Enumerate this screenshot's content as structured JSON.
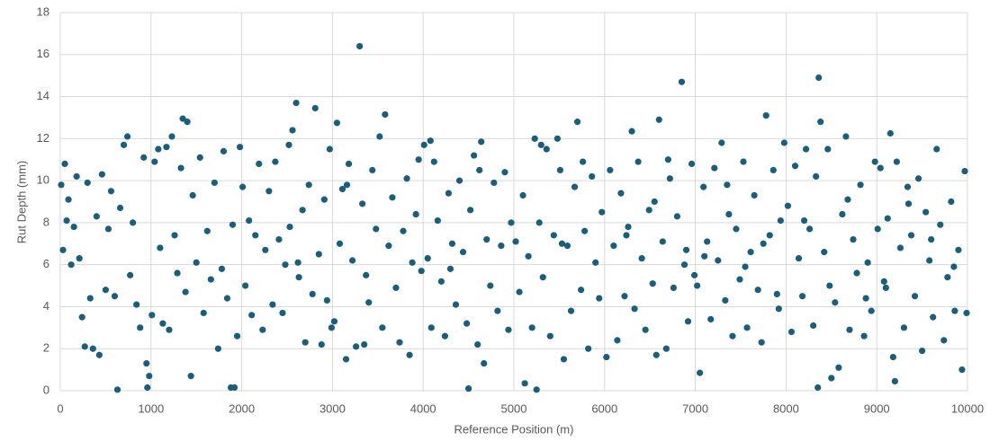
{
  "chart_data": {
    "type": "scatter",
    "x_label": "Reference Position (m)",
    "y_label": "Rut Depth (mm)",
    "color": "#1b5e7b",
    "grid": true,
    "xlim": [
      0,
      10000
    ],
    "ylim": [
      0,
      18
    ],
    "xticks": [
      0,
      1000,
      2000,
      3000,
      4000,
      5000,
      6000,
      7000,
      8000,
      9000,
      10000
    ],
    "yticks": [
      0,
      2,
      4,
      6,
      8,
      10,
      12,
      14,
      16,
      18
    ],
    "x": [
      10,
      30,
      50,
      70,
      90,
      120,
      150,
      180,
      210,
      240,
      270,
      300,
      330,
      360,
      400,
      430,
      460,
      500,
      530,
      560,
      600,
      630,
      660,
      700,
      740,
      770,
      800,
      840,
      880,
      920,
      950,
      960,
      980,
      1010,
      1040,
      1080,
      1100,
      1130,
      1170,
      1200,
      1230,
      1260,
      1290,
      1330,
      1350,
      1380,
      1400,
      1440,
      1460,
      1500,
      1540,
      1580,
      1620,
      1660,
      1700,
      1740,
      1780,
      1800,
      1840,
      1880,
      1900,
      1920,
      1950,
      1980,
      2010,
      2040,
      2080,
      2110,
      2150,
      2190,
      2230,
      2260,
      2300,
      2340,
      2370,
      2410,
      2450,
      2480,
      2520,
      2560,
      2600,
      2630,
      2670,
      2700,
      2740,
      2780,
      2810,
      2850,
      2880,
      2910,
      2940,
      2970,
      2990,
      2530,
      2620,
      3020,
      3050,
      3080,
      3110,
      3150,
      3180,
      3220,
      3260,
      3300,
      3330,
      3370,
      3400,
      3440,
      3480,
      3520,
      3550,
      3580,
      3620,
      3660,
      3700,
      3740,
      3780,
      3820,
      3850,
      3880,
      3920,
      3950,
      3980,
      3160,
      3350,
      4010,
      4050,
      4090,
      4120,
      4160,
      4200,
      4240,
      4280,
      4320,
      4360,
      4400,
      4440,
      4480,
      4500,
      4520,
      4560,
      4600,
      4640,
      4670,
      4700,
      4740,
      4780,
      4820,
      4860,
      4900,
      4940,
      4970,
      4080,
      4300,
      4620,
      5020,
      5060,
      5100,
      5120,
      5160,
      5200,
      5230,
      5250,
      5280,
      5320,
      5360,
      5400,
      5440,
      5480,
      5510,
      5550,
      5590,
      5630,
      5670,
      5700,
      5740,
      5780,
      5820,
      5860,
      5900,
      5940,
      5970,
      5300,
      5530,
      5760,
      6020,
      6060,
      6100,
      6140,
      6180,
      6220,
      6260,
      6300,
      6330,
      6370,
      6410,
      6450,
      6490,
      6530,
      6570,
      6600,
      6640,
      6680,
      6720,
      6760,
      6800,
      6850,
      6880,
      6920,
      6960,
      6990,
      6240,
      6550,
      6700,
      6900,
      7020,
      7050,
      7090,
      7130,
      7170,
      7210,
      7250,
      7290,
      7330,
      7370,
      7410,
      7450,
      7490,
      7530,
      7570,
      7610,
      7650,
      7690,
      7730,
      7780,
      7820,
      7860,
      7900,
      7940,
      7980,
      7100,
      7350,
      7550,
      7750,
      7920,
      8020,
      8060,
      8100,
      8140,
      8180,
      8220,
      8260,
      8300,
      8330,
      8350,
      8360,
      8380,
      8420,
      8460,
      8500,
      8540,
      8580,
      8620,
      8660,
      8700,
      8740,
      8780,
      8820,
      8860,
      8900,
      8940,
      8980,
      8200,
      8480,
      8680,
      8880,
      9010,
      9040,
      9080,
      9120,
      9150,
      9180,
      9200,
      9220,
      9260,
      9300,
      9340,
      9380,
      9420,
      9460,
      9500,
      9540,
      9580,
      9620,
      9660,
      9700,
      9740,
      9780,
      9820,
      9860,
      9900,
      9940,
      9970,
      9990,
      9100,
      9350,
      9600,
      9850
    ],
    "y": [
      9.8,
      6.7,
      10.8,
      8.1,
      9.1,
      6.0,
      7.8,
      10.2,
      6.3,
      3.5,
      2.1,
      9.9,
      4.4,
      2.0,
      8.3,
      1.7,
      10.3,
      4.8,
      7.7,
      9.5,
      4.5,
      0.05,
      8.7,
      11.7,
      12.1,
      5.5,
      8.0,
      4.1,
      3.0,
      11.1,
      1.3,
      0.15,
      0.7,
      3.6,
      10.9,
      11.5,
      6.8,
      3.2,
      11.6,
      2.9,
      12.1,
      7.4,
      5.6,
      10.6,
      12.95,
      4.7,
      12.8,
      0.7,
      9.3,
      6.1,
      11.1,
      3.7,
      7.6,
      5.3,
      9.9,
      2.0,
      5.8,
      11.4,
      4.4,
      0.15,
      7.9,
      0.15,
      2.6,
      11.6,
      9.7,
      5.0,
      8.1,
      3.6,
      7.4,
      10.8,
      2.9,
      6.7,
      9.5,
      4.1,
      10.9,
      7.2,
      3.7,
      6.0,
      11.7,
      12.4,
      13.7,
      5.4,
      8.6,
      2.3,
      9.8,
      4.6,
      13.45,
      6.5,
      2.2,
      9.1,
      4.3,
      11.5,
      3.0,
      7.8,
      6.1,
      3.3,
      12.75,
      7.0,
      9.6,
      1.5,
      10.8,
      6.2,
      2.1,
      16.4,
      8.9,
      5.5,
      4.2,
      10.5,
      7.7,
      12.1,
      3.0,
      13.15,
      6.9,
      9.2,
      4.9,
      2.3,
      7.6,
      10.1,
      1.7,
      6.1,
      8.4,
      11.0,
      5.7,
      9.8,
      2.2,
      11.7,
      6.3,
      3.0,
      10.9,
      8.1,
      5.2,
      2.6,
      9.4,
      7.0,
      4.1,
      10.0,
      6.6,
      3.2,
      0.1,
      8.6,
      11.2,
      2.2,
      11.85,
      1.3,
      7.2,
      5.0,
      9.9,
      3.8,
      6.9,
      10.4,
      2.9,
      8.0,
      11.9,
      5.8,
      10.5,
      7.1,
      4.7,
      9.3,
      0.35,
      6.4,
      3.0,
      12.0,
      0.05,
      8.0,
      5.4,
      11.5,
      2.6,
      7.4,
      12.0,
      10.5,
      1.5,
      6.9,
      3.8,
      9.7,
      12.8,
      4.8,
      7.6,
      2.0,
      10.2,
      6.1,
      4.4,
      8.5,
      11.7,
      7.0,
      10.9,
      1.6,
      10.5,
      6.9,
      2.4,
      9.4,
      4.5,
      7.8,
      12.35,
      3.9,
      10.9,
      6.3,
      2.9,
      8.6,
      5.1,
      1.7,
      12.9,
      7.1,
      2.0,
      10.1,
      4.9,
      8.3,
      14.7,
      6.0,
      3.3,
      10.8,
      5.5,
      7.4,
      9.0,
      11.0,
      6.7,
      5.0,
      0.85,
      9.7,
      7.1,
      3.4,
      10.6,
      6.2,
      11.8,
      4.3,
      8.4,
      2.6,
      7.7,
      5.3,
      10.9,
      3.0,
      6.6,
      9.3,
      4.8,
      2.3,
      13.1,
      7.4,
      10.5,
      4.6,
      8.1,
      11.8,
      6.4,
      9.8,
      5.9,
      7.0,
      3.9,
      8.8,
      2.8,
      10.7,
      6.3,
      4.5,
      11.5,
      7.7,
      3.1,
      10.2,
      0.15,
      14.9,
      12.8,
      6.6,
      11.5,
      0.6,
      4.2,
      1.1,
      8.4,
      12.1,
      2.9,
      7.2,
      5.6,
      9.8,
      2.6,
      6.1,
      3.8,
      10.9,
      8.1,
      5.0,
      9.1,
      4.4,
      7.7,
      10.6,
      5.2,
      8.2,
      12.25,
      1.6,
      0.45,
      10.9,
      6.8,
      3.0,
      9.7,
      7.4,
      4.5,
      10.1,
      1.9,
      8.5,
      6.2,
      3.5,
      11.5,
      7.9,
      2.4,
      5.4,
      9.0,
      3.8,
      6.7,
      1.0,
      10.45,
      3.7,
      4.9,
      8.9,
      7.2,
      5.9
    ]
  }
}
